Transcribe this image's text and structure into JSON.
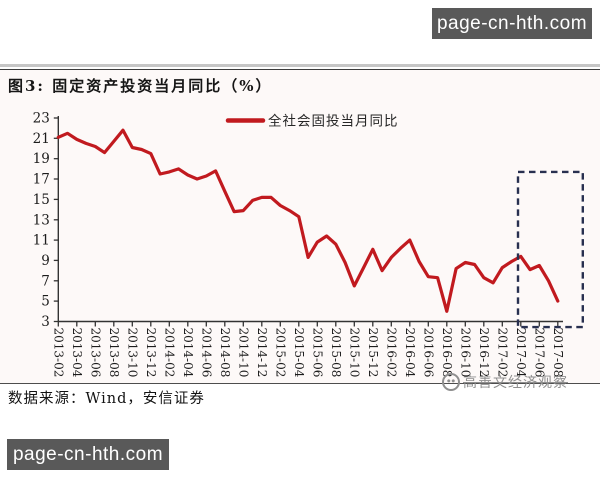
{
  "top_badge": {
    "text": "page-cn-hth.com",
    "bg": "#595959",
    "fg": "#ffffff"
  },
  "bottom_badge": {
    "text": "page-cn-hth.com",
    "bg": "#595959",
    "fg": "#ffffff"
  },
  "figure": {
    "title": "图3: 固定资产投资当月同比（%）",
    "source_note": "数据来源：Wind，安信证券",
    "watermark": "高善文经济观察"
  },
  "chart_data": {
    "type": "line",
    "title": "图3: 固定资产投资当月同比（%）",
    "xlabel": "",
    "ylabel": "",
    "grid": false,
    "legend_position": "top-center",
    "axis_color": "#333333",
    "ylim": [
      3,
      23
    ],
    "yticks": [
      3,
      5,
      7,
      9,
      11,
      13,
      15,
      17,
      19,
      21,
      23
    ],
    "tick_every": 2,
    "x": [
      "2013-02",
      "2013-03",
      "2013-04",
      "2013-05",
      "2013-06",
      "2013-07",
      "2013-08",
      "2013-09",
      "2013-10",
      "2013-11",
      "2013-12",
      "2014-01",
      "2014-02",
      "2014-03",
      "2014-04",
      "2014-05",
      "2014-06",
      "2014-07",
      "2014-08",
      "2014-09",
      "2014-10",
      "2014-11",
      "2014-12",
      "2015-01",
      "2015-02",
      "2015-03",
      "2015-04",
      "2015-05",
      "2015-06",
      "2015-07",
      "2015-08",
      "2015-09",
      "2015-10",
      "2015-11",
      "2015-12",
      "2016-01",
      "2016-02",
      "2016-03",
      "2016-04",
      "2016-05",
      "2016-06",
      "2016-07",
      "2016-08",
      "2016-09",
      "2016-10",
      "2016-11",
      "2016-12",
      "2017-01",
      "2017-02",
      "2017-03",
      "2017-04",
      "2017-05",
      "2017-06",
      "2017-07",
      "2017-08"
    ],
    "x_tick_labels": [
      "2013-02",
      "2013-04",
      "2013-06",
      "2013-08",
      "2013-10",
      "2013-12",
      "2014-02",
      "2014-04",
      "2014-06",
      "2014-08",
      "2014-10",
      "2014-12",
      "2015-02",
      "2015-04",
      "2015-06",
      "2015-08",
      "2015-10",
      "2015-12",
      "2016-02",
      "2016-04",
      "2016-06",
      "2016-08",
      "2016-10",
      "2016-12",
      "2017-02",
      "2017-04",
      "2017-06",
      "2017-08"
    ],
    "series": [
      {
        "name": "全社会固投当月同比",
        "color": "#c11a1f",
        "values": [
          21.1,
          21.5,
          20.9,
          20.5,
          20.2,
          19.6,
          20.7,
          21.8,
          20.1,
          19.9,
          19.5,
          17.5,
          17.7,
          18.0,
          17.4,
          17.0,
          17.3,
          17.8,
          15.8,
          13.8,
          13.9,
          14.9,
          15.2,
          15.2,
          14.4,
          13.9,
          13.3,
          9.3,
          10.8,
          11.4,
          10.6,
          8.8,
          6.5,
          8.3,
          10.1,
          8.0,
          9.3,
          10.2,
          11.0,
          8.9,
          7.4,
          7.3,
          4.0,
          8.2,
          8.8,
          8.6,
          7.3,
          6.8,
          8.3,
          8.9,
          9.4,
          8.1,
          8.5,
          7.0,
          5.0
        ]
      }
    ],
    "highlight_box": {
      "style": "dashed",
      "color": "#283050",
      "x_index_from": 49.7,
      "x_index_to": 56.7,
      "y_from": 2.45,
      "y_to": 17.7
    }
  }
}
